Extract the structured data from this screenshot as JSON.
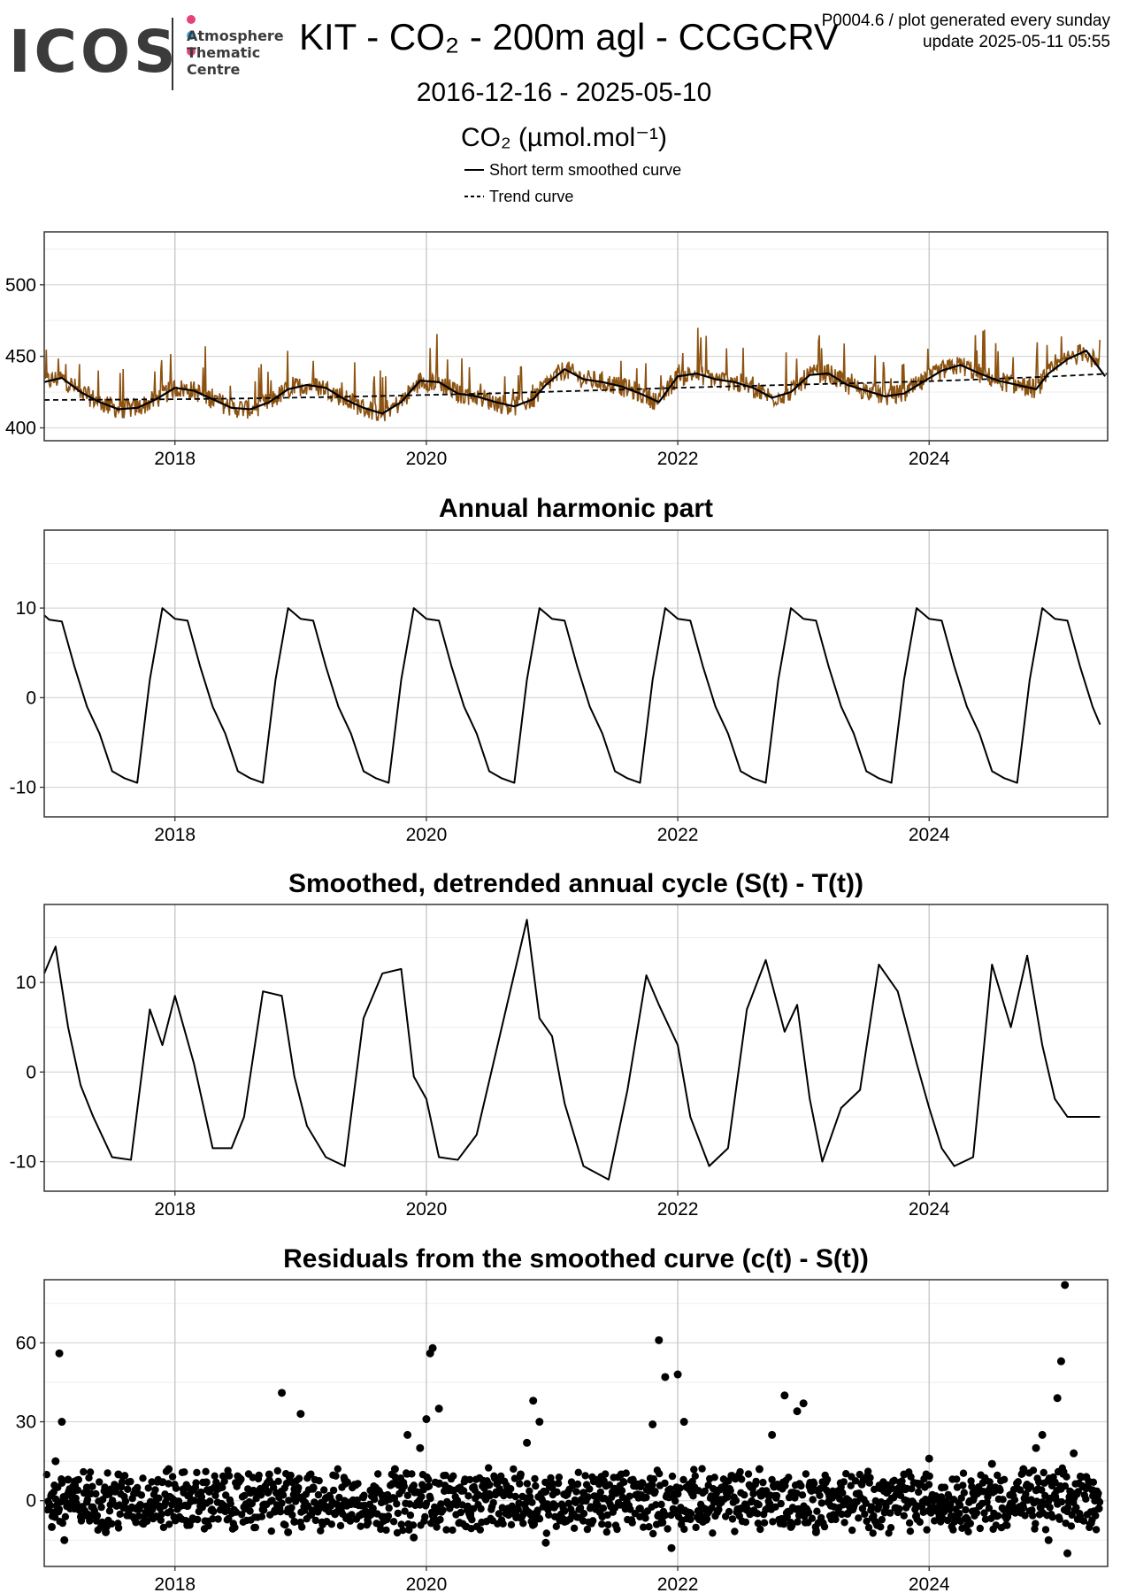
{
  "header": {
    "logo_word": "ICOS",
    "logo_sub": [
      "Atmosphere",
      "Thematic",
      "Centre"
    ],
    "logo_dot_colors": [
      "#e6417a",
      "#2fa9e0",
      "#e6417a"
    ],
    "title": "KIT - CO₂ - 200m agl - CCGCRV",
    "note_line1": "P0004.6 / plot generated every sunday",
    "note_line2": "update  2025-05-11 05:55",
    "date_range": "2016-12-16 - 2025-05-10",
    "unit": "CO₂ (µmol.mol⁻¹)"
  },
  "legend": {
    "short_term": "Short term smoothed curve",
    "trend": "Trend curve"
  },
  "colors": {
    "raw_series": "#8c5210",
    "curve": "#000000",
    "grid": "#d9d9d9",
    "minor_grid": "#ededed"
  },
  "chart_data": [
    {
      "type": "line",
      "title": "",
      "ylabel": "",
      "xlim": [
        2016.96,
        2025.42
      ],
      "ylim": [
        391,
        537
      ],
      "x_ticks": [
        "2018",
        "2020",
        "2022",
        "2024"
      ],
      "y_ticks": [
        "400",
        "450",
        "500"
      ],
      "grid": true,
      "series": [
        {
          "name": "Short term smoothed curve",
          "x": [
            2016.96,
            2017.1,
            2017.25,
            2017.4,
            2017.55,
            2017.7,
            2017.85,
            2018.0,
            2018.15,
            2018.3,
            2018.45,
            2018.6,
            2018.75,
            2018.9,
            2019.05,
            2019.2,
            2019.35,
            2019.5,
            2019.65,
            2019.8,
            2019.95,
            2020.1,
            2020.25,
            2020.4,
            2020.55,
            2020.7,
            2020.85,
            2020.95,
            2021.1,
            2021.25,
            2021.4,
            2021.55,
            2021.7,
            2021.85,
            2022.0,
            2022.15,
            2022.3,
            2022.45,
            2022.6,
            2022.75,
            2022.9,
            2023.05,
            2023.2,
            2023.35,
            2023.5,
            2023.65,
            2023.8,
            2023.95,
            2024.1,
            2024.25,
            2024.4,
            2024.55,
            2024.7,
            2024.85,
            2024.95,
            2025.1,
            2025.25,
            2025.4
          ],
          "y": [
            432,
            435,
            425,
            418,
            413,
            414,
            420,
            428,
            426,
            420,
            414,
            413,
            418,
            427,
            430,
            428,
            420,
            414,
            410,
            418,
            433,
            432,
            424,
            422,
            418,
            415,
            420,
            430,
            441,
            434,
            432,
            429,
            424,
            418,
            436,
            438,
            434,
            432,
            428,
            421,
            425,
            437,
            438,
            430,
            426,
            422,
            424,
            432,
            440,
            444,
            438,
            433,
            430,
            427,
            438,
            448,
            454,
            436
          ]
        },
        {
          "name": "Trend curve",
          "x": [
            2016.96,
            2017.5,
            2018.0,
            2018.5,
            2019.0,
            2019.5,
            2020.0,
            2020.5,
            2021.0,
            2021.5,
            2022.0,
            2022.5,
            2023.0,
            2023.5,
            2024.0,
            2024.5,
            2025.0,
            2025.42
          ],
          "y": [
            419.5,
            419.7,
            420.0,
            420.5,
            421.2,
            422.0,
            423.0,
            424.0,
            425.3,
            426.6,
            428.0,
            429.2,
            430.3,
            431.4,
            432.6,
            434.2,
            436.0,
            437.8
          ]
        }
      ]
    },
    {
      "type": "line",
      "title": "Annual harmonic part",
      "xlim": [
        2016.96,
        2025.42
      ],
      "ylim": [
        -13.3,
        18.7
      ],
      "x_ticks": [
        "2018",
        "2020",
        "2022",
        "2024"
      ],
      "y_ticks": [
        "-10",
        "0",
        "10"
      ],
      "grid": true,
      "series": [
        {
          "name": "",
          "x": [
            2016.96,
            2017.0,
            2017.1,
            2017.2,
            2017.3,
            2017.4,
            2017.5,
            2017.6,
            2017.7,
            2017.8,
            2017.9,
            2018.0,
            2018.1,
            2018.2,
            2018.3,
            2018.4,
            2018.5,
            2018.6,
            2018.7,
            2018.8,
            2018.9,
            2019.0,
            2019.1,
            2019.2,
            2019.3,
            2019.4,
            2019.5,
            2019.6,
            2019.7,
            2019.8,
            2019.9,
            2020.0,
            2020.1,
            2020.2,
            2020.3,
            2020.4,
            2020.5,
            2020.6,
            2020.7,
            2020.8,
            2020.9,
            2021.0,
            2021.1,
            2021.2,
            2021.3,
            2021.4,
            2021.5,
            2021.6,
            2021.7,
            2021.8,
            2021.9,
            2022.0,
            2022.1,
            2022.2,
            2022.3,
            2022.4,
            2022.5,
            2022.6,
            2022.7,
            2022.8,
            2022.9,
            2023.0,
            2023.1,
            2023.2,
            2023.3,
            2023.4,
            2023.5,
            2023.6,
            2023.7,
            2023.8,
            2023.9,
            2024.0,
            2024.1,
            2024.2,
            2024.3,
            2024.4,
            2024.5,
            2024.6,
            2024.7,
            2024.8,
            2024.9,
            2025.0,
            2025.1,
            2025.2,
            2025.3,
            2025.36
          ],
          "y": [
            9.2,
            8.7,
            8.5,
            3.5,
            -1.0,
            -4.0,
            -8.2,
            -9.0,
            -9.5,
            2.0,
            10.0,
            8.8,
            8.6,
            3.5,
            -1.0,
            -4.0,
            -8.2,
            -9.0,
            -9.5,
            2.0,
            10.0,
            8.8,
            8.6,
            3.5,
            -1.0,
            -4.0,
            -8.2,
            -9.0,
            -9.5,
            2.0,
            10.0,
            8.8,
            8.6,
            3.5,
            -1.0,
            -4.0,
            -8.2,
            -9.0,
            -9.5,
            2.0,
            10.0,
            8.8,
            8.6,
            3.5,
            -1.0,
            -4.0,
            -8.2,
            -9.0,
            -9.5,
            2.0,
            10.0,
            8.8,
            8.6,
            3.5,
            -1.0,
            -4.0,
            -8.2,
            -9.0,
            -9.5,
            2.0,
            10.0,
            8.8,
            8.6,
            3.5,
            -1.0,
            -4.0,
            -8.2,
            -9.0,
            -9.5,
            2.0,
            10.0,
            8.8,
            8.6,
            3.5,
            -1.0,
            -4.0,
            -8.2,
            -9.0,
            -9.5,
            2.0,
            10.0,
            8.8,
            8.6,
            3.5,
            -1.0,
            -3.0
          ]
        }
      ]
    },
    {
      "type": "line",
      "title": "Smoothed, detrended annual cycle (S(t) - T(t))",
      "xlim": [
        2016.96,
        2025.42
      ],
      "ylim": [
        -13.3,
        18.7
      ],
      "x_ticks": [
        "2018",
        "2020",
        "2022",
        "2024"
      ],
      "y_ticks": [
        "-10",
        "0",
        "10"
      ],
      "grid": true,
      "series": [
        {
          "name": "",
          "x": [
            2016.96,
            2017.05,
            2017.15,
            2017.25,
            2017.35,
            2017.5,
            2017.65,
            2017.8,
            2017.9,
            2018.0,
            2018.15,
            2018.3,
            2018.45,
            2018.55,
            2018.7,
            2018.85,
            2018.95,
            2019.05,
            2019.2,
            2019.35,
            2019.5,
            2019.65,
            2019.8,
            2019.9,
            2020.0,
            2020.1,
            2020.25,
            2020.4,
            2020.55,
            2020.7,
            2020.8,
            2020.9,
            2021.0,
            2021.1,
            2021.25,
            2021.45,
            2021.6,
            2021.75,
            2021.85,
            2022.0,
            2022.1,
            2022.25,
            2022.4,
            2022.55,
            2022.7,
            2022.85,
            2022.95,
            2023.05,
            2023.15,
            2023.3,
            2023.45,
            2023.6,
            2023.75,
            2023.9,
            2024.0,
            2024.1,
            2024.2,
            2024.35,
            2024.5,
            2024.65,
            2024.78,
            2024.9,
            2025.0,
            2025.1,
            2025.2,
            2025.3,
            2025.36
          ],
          "y": [
            11,
            14,
            5,
            -1.5,
            -5,
            -9.5,
            -9.8,
            7,
            3,
            8.5,
            1,
            -8.5,
            -8.5,
            -5,
            9,
            8.5,
            -0.5,
            -6,
            -9.5,
            -10.5,
            6,
            11,
            11.5,
            -0.5,
            -3,
            -9.5,
            -9.8,
            -7,
            2,
            11,
            17,
            6,
            4,
            -3.5,
            -10.5,
            -12,
            -2,
            10.8,
            7.5,
            3,
            -5,
            -10.5,
            -8.5,
            7,
            12.5,
            4.5,
            7.5,
            -3,
            -10,
            -4,
            -2,
            12,
            9,
            1,
            -4,
            -8.5,
            -10.5,
            -9.5,
            12,
            5,
            13,
            3,
            -3,
            -5,
            -5,
            -5,
            -5
          ]
        }
      ]
    },
    {
      "type": "scatter",
      "title": "Residuals from the smoothed curve (c(t) - S(t))",
      "xlim": [
        2016.96,
        2025.42
      ],
      "ylim": [
        -25,
        84
      ],
      "x_ticks": [
        "2018",
        "2020",
        "2022",
        "2024"
      ],
      "y_ticks": [
        "0",
        "30",
        "60"
      ],
      "grid": true,
      "series": [
        {
          "name": "",
          "x": [
            2017.02,
            2017.05,
            2017.08,
            2017.1,
            2017.12,
            2017.15,
            2017.2,
            2017.3,
            2017.45,
            2017.55,
            2017.7,
            2017.85,
            2017.95,
            2018.1,
            2018.25,
            2018.4,
            2018.6,
            2018.75,
            2018.85,
            2018.9,
            2018.95,
            2019.0,
            2019.1,
            2019.2,
            2019.35,
            2019.5,
            2019.65,
            2019.75,
            2019.85,
            2019.9,
            2019.95,
            2020.0,
            2020.03,
            2020.05,
            2020.1,
            2020.2,
            2020.35,
            2020.5,
            2020.65,
            2020.75,
            2020.8,
            2020.85,
            2020.9,
            2020.95,
            2021.0,
            2021.1,
            2021.25,
            2021.4,
            2021.55,
            2021.7,
            2021.8,
            2021.85,
            2021.9,
            2021.95,
            2022.0,
            2022.05,
            2022.1,
            2022.2,
            2022.35,
            2022.5,
            2022.65,
            2022.75,
            2022.85,
            2022.9,
            2022.95,
            2023.0,
            2023.05,
            2023.1,
            2023.2,
            2023.35,
            2023.5,
            2023.65,
            2023.8,
            2023.9,
            2024.0,
            2024.1,
            2024.2,
            2024.35,
            2024.5,
            2024.65,
            2024.75,
            2024.85,
            2024.9,
            2024.95,
            2025.0,
            2025.02,
            2025.05,
            2025.08,
            2025.1,
            2025.15,
            2025.2,
            2025.25,
            2025.3,
            2025.35
          ],
          "y": [
            -10,
            15,
            56,
            30,
            -15,
            8,
            -3,
            5,
            -12,
            10,
            3,
            -6,
            12,
            -2,
            7,
            -4,
            3,
            10,
            41,
            -12,
            -8,
            33,
            5,
            -3,
            8,
            -5,
            2,
            12,
            25,
            -14,
            20,
            31,
            56,
            58,
            35,
            4,
            -6,
            6,
            -3,
            10,
            22,
            38,
            30,
            -16,
            5,
            -8,
            3,
            -6,
            10,
            -3,
            29,
            61,
            47,
            -18,
            48,
            30,
            4,
            -8,
            5,
            -3,
            12,
            25,
            40,
            -10,
            34,
            37,
            6,
            -12,
            3,
            -5,
            8,
            -4,
            10,
            -2,
            16,
            5,
            -6,
            3,
            14,
            -4,
            12,
            20,
            25,
            -15,
            7,
            39,
            53,
            82,
            -20,
            18,
            -6,
            9,
            4,
            -3
          ]
        }
      ]
    }
  ]
}
